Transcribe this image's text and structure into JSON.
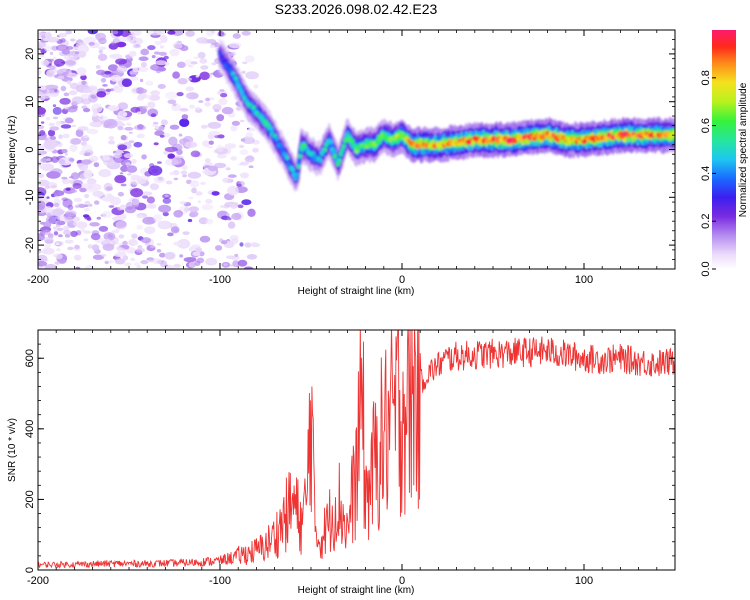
{
  "title": "S233.2026.098.02.42.E23",
  "chart_data": [
    {
      "type": "heatmap",
      "xlabel": "Height of straight line (km)",
      "ylabel": "Frequency (Hz)",
      "xlim": [
        -200,
        150
      ],
      "ylim": [
        -25,
        25
      ],
      "xticks": [
        -200,
        -100,
        0,
        100
      ],
      "yticks": [
        -20,
        -10,
        0,
        10,
        20
      ],
      "colorbar": {
        "label": "Normalized spectral amplitude",
        "range": [
          0,
          1
        ],
        "ticks": [
          "0.0",
          "0.2",
          "0.4",
          "0.6",
          "0.8"
        ],
        "colors": [
          "#ffffff",
          "#e9d9fb",
          "#b58cf0",
          "#7a2be0",
          "#3c1ff0",
          "#1a4cff",
          "#1ec8f0",
          "#26e69a",
          "#37f23a",
          "#b8f21e",
          "#f5e11e",
          "#ff8c1a",
          "#ff2a1a",
          "#ff1a6e"
        ]
      },
      "ridge": {
        "x": [
          -100,
          -92,
          -85,
          -78,
          -72,
          -66,
          -62,
          -58,
          -55,
          -50,
          -45,
          -40,
          -35,
          -30,
          -25,
          -20,
          -15,
          -10,
          -5,
          0,
          5,
          10,
          20,
          40,
          60,
          80,
          90,
          100,
          120,
          150
        ],
        "freq": [
          20,
          15,
          10,
          7,
          4,
          0,
          -3,
          -6,
          1,
          -1,
          -2,
          2,
          -3,
          3,
          0,
          1,
          1,
          3,
          2,
          3,
          1,
          1,
          1,
          2,
          2,
          3,
          2,
          2,
          3,
          3
        ],
        "amplitude": [
          0.3,
          0.45,
          0.45,
          0.5,
          0.5,
          0.4,
          0.45,
          0.45,
          0.55,
          0.5,
          0.45,
          0.5,
          0.5,
          0.55,
          0.6,
          0.6,
          0.65,
          0.6,
          0.65,
          0.7,
          0.8,
          0.85,
          0.8,
          0.85,
          0.9,
          0.9,
          0.85,
          0.85,
          0.9,
          0.8
        ]
      }
    },
    {
      "type": "line",
      "xlabel": "Height of straight line (km)",
      "ylabel": "SNR (10 * v/v)",
      "xlim": [
        -200,
        150
      ],
      "ylim": [
        0,
        680
      ],
      "xticks": [
        -200,
        -100,
        0,
        100
      ],
      "yticks": [
        0,
        200,
        400,
        600
      ],
      "series": [
        {
          "name": "SNR",
          "color": "#ee3333",
          "x": [
            -200,
            -180,
            -160,
            -140,
            -120,
            -100,
            -90,
            -80,
            -75,
            -70,
            -65,
            -60,
            -55,
            -52,
            -50,
            -48,
            -45,
            -40,
            -35,
            -30,
            -25,
            -22,
            -20,
            -15,
            -10,
            -5,
            0,
            5,
            10,
            15,
            20,
            25,
            30,
            40,
            60,
            80,
            90,
            100,
            110,
            120,
            130,
            140,
            150
          ],
          "values": [
            15,
            16,
            18,
            18,
            20,
            26,
            40,
            55,
            70,
            95,
            140,
            190,
            130,
            210,
            540,
            120,
            80,
            140,
            200,
            110,
            280,
            520,
            200,
            300,
            380,
            430,
            470,
            500,
            530,
            560,
            580,
            600,
            605,
            610,
            615,
            620,
            610,
            600,
            595,
            600,
            590,
            585,
            590
          ]
        }
      ]
    }
  ]
}
